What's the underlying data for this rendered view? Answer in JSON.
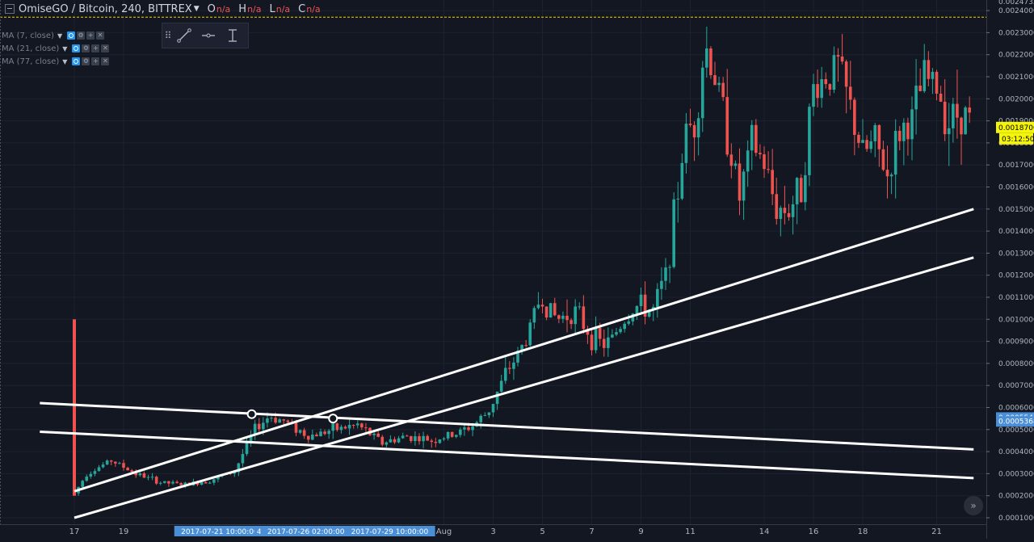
{
  "header": {
    "symbol": "OmiseGO / Bitcoin, 240, BITTREX",
    "ohlc": [
      {
        "label": "O",
        "value": "n/a"
      },
      {
        "label": "H",
        "value": "n/a"
      },
      {
        "label": "L",
        "value": "n/a"
      },
      {
        "label": "C",
        "value": "n/a"
      }
    ]
  },
  "indicators": [
    {
      "label": "MA (7, close)"
    },
    {
      "label": "MA (21, close)"
    },
    {
      "label": "MA (77, close)"
    }
  ],
  "colors": {
    "background": "#131722",
    "grid": "#1e2230",
    "up": "#26a69a",
    "down": "#ef5350",
    "trendline": "#ffffff",
    "price_tag": "#f5f50a",
    "cursor_tag": "#4a8fd6",
    "highlight_line": "#f5d60a"
  },
  "chart_data": {
    "type": "candlestick",
    "y_range": [
      8e-05,
      0.00248
    ],
    "y_ticks": [
      "0.00010000",
      "0.00020000",
      "0.00030000",
      "0.00040000",
      "0.00050000",
      "0.00060000",
      "0.00070000",
      "0.00080000",
      "0.00090000",
      "0.00100000",
      "0.00110000",
      "0.00120000",
      "0.00130000",
      "0.00140000",
      "0.00150000",
      "0.00160000",
      "0.00170000",
      "0.00180000",
      "0.00190000",
      "0.00200000",
      "0.00210000",
      "0.00220000",
      "0.00230000",
      "0.00240000"
    ],
    "top_value_label": "0.00247325",
    "x_ticks": [
      {
        "label": "17",
        "day": 17
      },
      {
        "label": "19",
        "day": 19
      },
      {
        "label": "Aug",
        "day": 32
      },
      {
        "label": "3",
        "day": 34
      },
      {
        "label": "5",
        "day": 36
      },
      {
        "label": "7",
        "day": 38
      },
      {
        "label": "9",
        "day": 40
      },
      {
        "label": "11",
        "day": 42
      },
      {
        "label": "14",
        "day": 45
      },
      {
        "label": "16",
        "day": 47
      },
      {
        "label": "18",
        "day": 49
      },
      {
        "label": "21",
        "day": 52
      }
    ],
    "x_highlights": [
      {
        "label": "201",
        "day": 21.6
      },
      {
        "label": "2017-07-21 10:00:00",
        "day": 22.9
      },
      {
        "label": "4",
        "day": 24.5
      },
      {
        "label": "2017-07-26 02:00:00",
        "day": 26.4
      },
      {
        "label": "2017-07-29 10:00:00",
        "day": 29.8
      }
    ],
    "price_tag": {
      "value": 0.00187,
      "label": "0.00187000",
      "countdown": "03:12:50"
    },
    "cursor_tags": [
      {
        "value": 0.00055457,
        "label": "0.00055457"
      },
      {
        "value": 0.00053684,
        "label": "0.00053684"
      }
    ],
    "horizontal_line": 0.00237,
    "anchors": [
      {
        "day": 17,
        "path": [
          [
            17.0,
            0.00021
          ],
          [
            17.5,
            0.0003
          ],
          [
            18.5,
            0.00036
          ],
          [
            19.5,
            0.0003
          ],
          [
            20.5,
            0.00026
          ],
          [
            21.5,
            0.00025
          ],
          [
            22.5,
            0.00027
          ],
          [
            23.5,
            0.00031
          ],
          [
            24.3,
            0.0005
          ],
          [
            24.9,
            0.00056
          ],
          [
            25.5,
            0.00054
          ],
          [
            26.5,
            0.00047
          ],
          [
            27.5,
            0.0005
          ],
          [
            28.5,
            0.00052
          ],
          [
            29.5,
            0.00044
          ],
          [
            30.5,
            0.00047
          ],
          [
            31.5,
            0.00045
          ],
          [
            32.5,
            0.00048
          ],
          [
            33.2,
            0.00052
          ],
          [
            33.8,
            0.00058
          ],
          [
            34.5,
            0.00075
          ],
          [
            35.3,
            0.0009
          ],
          [
            35.9,
            0.0011
          ],
          [
            36.6,
            0.001
          ],
          [
            37.3,
            0.00104
          ],
          [
            38.0,
            0.00092
          ],
          [
            38.6,
            0.00088
          ],
          [
            39.2,
            0.00098
          ],
          [
            39.8,
            0.00106
          ],
          [
            40.5,
            0.00104
          ],
          [
            41.0,
            0.0012
          ],
          [
            41.4,
            0.0015
          ],
          [
            41.8,
            0.00185
          ],
          [
            42.2,
            0.0019
          ],
          [
            42.6,
            0.00225
          ],
          [
            43.0,
            0.0021
          ],
          [
            43.5,
            0.00185
          ],
          [
            44.0,
            0.00155
          ],
          [
            44.5,
            0.0018
          ],
          [
            45.0,
            0.0017
          ],
          [
            45.5,
            0.0015
          ],
          [
            46.0,
            0.0015
          ],
          [
            46.5,
            0.0016
          ],
          [
            47.0,
            0.00205
          ],
          [
            47.5,
            0.0021
          ],
          [
            48.0,
            0.00215
          ],
          [
            48.5,
            0.00195
          ],
          [
            49.0,
            0.00175
          ],
          [
            49.5,
            0.0018
          ],
          [
            50.0,
            0.00165
          ],
          [
            50.5,
            0.00185
          ],
          [
            51.0,
            0.0019
          ],
          [
            51.5,
            0.0021
          ],
          [
            52.0,
            0.00205
          ],
          [
            52.5,
            0.0019
          ],
          [
            53.0,
            0.00195
          ],
          [
            53.4,
            0.0019
          ]
        ]
      }
    ],
    "spike": {
      "day": 17.0,
      "high": 0.001,
      "low": 0.0002
    },
    "trendlines": [
      {
        "from": [
          17.0,
          0.00022
        ],
        "to": [
          53.5,
          0.0015
        ]
      },
      {
        "from": [
          17.0,
          0.0001
        ],
        "to": [
          53.5,
          0.00128
        ]
      },
      {
        "from": [
          15.6,
          0.00062
        ],
        "to": [
          53.5,
          0.00041
        ]
      },
      {
        "from": [
          15.6,
          0.00049
        ],
        "to": [
          53.5,
          0.00028
        ]
      }
    ],
    "anchor_points": [
      [
        24.2,
        0.00057
      ],
      [
        27.5,
        0.00055
      ]
    ]
  }
}
